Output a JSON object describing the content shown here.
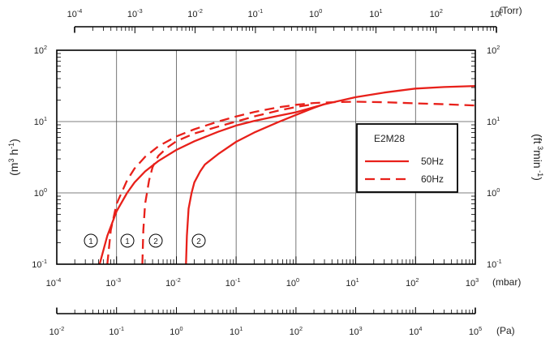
{
  "chart_data": {
    "type": "line",
    "legend": {
      "title": "E2M28",
      "entries": [
        {
          "label": "50Hz",
          "style": "solid"
        },
        {
          "label": "60Hz",
          "style": "dashed"
        }
      ],
      "placement": "right"
    },
    "axes": {
      "x_mbar": {
        "unit": "(mbar)",
        "range": [
          0.0001,
          1000
        ],
        "scale": "log",
        "ticks": [
          {
            "b": "10",
            "e": "-4"
          },
          {
            "b": "10",
            "e": "-3"
          },
          {
            "b": "10",
            "e": "-2"
          },
          {
            "b": "10",
            "e": "-1"
          },
          {
            "b": "10",
            "e": "0"
          },
          {
            "b": "10",
            "e": "1"
          },
          {
            "b": "10",
            "e": "2"
          },
          {
            "b": "10",
            "e": "3"
          }
        ]
      },
      "x_torr": {
        "unit": "(Torr)",
        "scale": "log",
        "ticks": [
          {
            "b": "10",
            "e": "-4"
          },
          {
            "b": "10",
            "e": "-3"
          },
          {
            "b": "10",
            "e": "-2"
          },
          {
            "b": "10",
            "e": "-1"
          },
          {
            "b": "10",
            "e": "0"
          },
          {
            "b": "10",
            "e": "1"
          },
          {
            "b": "10",
            "e": "2"
          },
          {
            "b": "10",
            "e": "3"
          }
        ]
      },
      "x_pa": {
        "unit": "(Pa)",
        "scale": "log",
        "ticks": [
          {
            "b": "10",
            "e": "-2"
          },
          {
            "b": "10",
            "e": "-1"
          },
          {
            "b": "10",
            "e": "0"
          },
          {
            "b": "10",
            "e": "1"
          },
          {
            "b": "10",
            "e": "2"
          },
          {
            "b": "10",
            "e": "3"
          },
          {
            "b": "10",
            "e": "4"
          },
          {
            "b": "10",
            "e": "5"
          }
        ]
      },
      "y_left": {
        "label_base": "(m",
        "label_sup": "3",
        "label_mid": " h",
        "label_sup2": "-1",
        "label_end": ")",
        "range": [
          0.1,
          100
        ],
        "scale": "log",
        "ticks": [
          {
            "b": "10",
            "e": "-1"
          },
          {
            "b": "10",
            "e": "0"
          },
          {
            "b": "10",
            "e": "1"
          },
          {
            "b": "10",
            "e": "2"
          }
        ]
      },
      "y_right": {
        "label_base": "(ft",
        "label_sup": " 3",
        "label_mid": "min",
        "label_sup2": " -1",
        "label_end": ")",
        "scale": "log",
        "ticks": [
          {
            "b": "10",
            "e": "-1"
          },
          {
            "b": "10",
            "e": "0"
          },
          {
            "b": "10",
            "e": "1"
          },
          {
            "b": "10",
            "e": "2"
          }
        ]
      }
    },
    "grid": true,
    "annotations": [
      "1",
      "1",
      "2",
      "2"
    ],
    "series": [
      {
        "name": "50Hz",
        "curve": "1",
        "style": "solid",
        "x": [
          0.00052,
          0.0007,
          0.001,
          0.0015,
          0.002,
          0.003,
          0.005,
          0.01,
          0.02,
          0.05,
          0.1,
          0.2,
          0.5,
          1,
          3,
          10,
          30,
          100,
          300,
          1000
        ],
        "y": [
          0.1,
          0.25,
          0.55,
          1.0,
          1.4,
          2.0,
          2.8,
          4.0,
          5.3,
          7.2,
          8.8,
          10.2,
          12.0,
          13.5,
          17.5,
          22.0,
          25.5,
          29.0,
          30.5,
          31.5
        ]
      },
      {
        "name": "50Hz",
        "curve": "2",
        "style": "solid",
        "x": [
          0.0145,
          0.015,
          0.016,
          0.018,
          0.02,
          0.025,
          0.03,
          0.05,
          0.1,
          0.2,
          0.5,
          1,
          2,
          3
        ],
        "y": [
          0.1,
          0.25,
          0.6,
          1.0,
          1.4,
          2.0,
          2.5,
          3.5,
          5.2,
          7.0,
          9.8,
          12.4,
          15.6,
          17.6
        ]
      },
      {
        "name": "60Hz",
        "curve": "1",
        "style": "dashed",
        "x": [
          0.0007,
          0.0008,
          0.001,
          0.0015,
          0.002,
          0.003,
          0.005,
          0.01,
          0.02,
          0.05,
          0.1,
          0.2,
          0.5,
          1,
          2,
          5,
          10,
          30,
          100,
          300,
          1000
        ],
        "y": [
          0.1,
          0.3,
          0.7,
          1.5,
          2.2,
          3.2,
          4.5,
          6.2,
          7.8,
          10.0,
          11.8,
          13.6,
          15.8,
          17.2,
          18.2,
          18.8,
          19.0,
          18.7,
          18.0,
          17.5,
          16.8
        ]
      },
      {
        "name": "60Hz",
        "curve": "2",
        "style": "dashed",
        "x": [
          0.0027,
          0.0028,
          0.003,
          0.0035,
          0.004,
          0.005,
          0.007,
          0.01,
          0.02,
          0.05,
          0.1,
          0.2,
          0.5,
          1,
          2
        ],
        "y": [
          0.1,
          0.3,
          0.7,
          1.5,
          2.3,
          3.3,
          4.3,
          5.3,
          6.8,
          8.5,
          10.0,
          11.8,
          14.2,
          16.0,
          17.5
        ]
      }
    ]
  }
}
